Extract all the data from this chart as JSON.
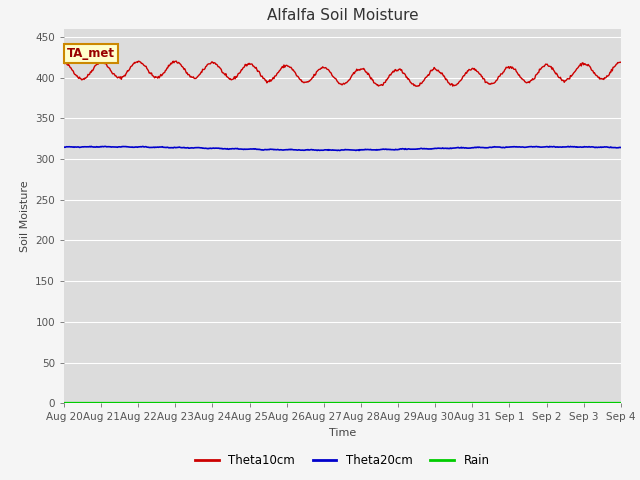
{
  "title": "Alfalfa Soil Moisture",
  "xlabel": "Time",
  "ylabel": "Soil Moisture",
  "ylim": [
    0,
    460
  ],
  "yticks": [
    0,
    50,
    100,
    150,
    200,
    250,
    300,
    350,
    400,
    450
  ],
  "x_labels": [
    "Aug 20",
    "Aug 21",
    "Aug 22",
    "Aug 23",
    "Aug 24",
    "Aug 25",
    "Aug 26",
    "Aug 27",
    "Aug 28",
    "Aug 29",
    "Aug 30",
    "Aug 31",
    "Sep 1",
    "Sep 2",
    "Sep 3",
    "Sep 4"
  ],
  "annotation_text": "TA_met",
  "annotation_box_color": "#ffffcc",
  "annotation_border_color": "#cc8800",
  "theta10_color": "#cc0000",
  "theta20_color": "#0000cc",
  "rain_color": "#00cc00",
  "bg_color": "#dcdcdc",
  "grid_color": "#ffffff",
  "fig_bg_color": "#f5f5f5",
  "theta10_base": 405,
  "theta10_amplitude": 10,
  "theta20_base": 313,
  "theta20_amplitude": 2,
  "rain_value": 1,
  "n_days": 15,
  "points_per_day": 48,
  "title_fontsize": 11,
  "axis_label_fontsize": 8,
  "tick_fontsize": 7.5,
  "tick_color": "#555555",
  "legend_fontsize": 8.5
}
